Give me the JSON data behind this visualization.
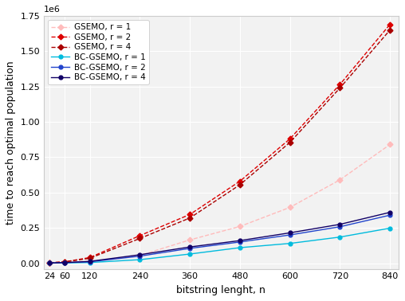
{
  "x": [
    24,
    60,
    120,
    240,
    360,
    480,
    600,
    720,
    840
  ],
  "gsemo_r1": [
    2000,
    5000,
    15000,
    55000,
    165000,
    260000,
    395000,
    590000,
    840000
  ],
  "gsemo_r2": [
    3500,
    10000,
    40000,
    195000,
    345000,
    580000,
    880000,
    1265000,
    1690000
  ],
  "gsemo_r4": [
    3000,
    9000,
    35000,
    175000,
    320000,
    555000,
    855000,
    1240000,
    1650000
  ],
  "bc_gsemo_r1": [
    500,
    2000,
    5000,
    25000,
    65000,
    110000,
    140000,
    185000,
    248000
  ],
  "bc_gsemo_r2": [
    1000,
    3500,
    10000,
    50000,
    105000,
    150000,
    200000,
    258000,
    340000
  ],
  "bc_gsemo_r4": [
    1500,
    4500,
    13000,
    60000,
    115000,
    160000,
    215000,
    275000,
    360000
  ],
  "colors": {
    "gsemo_r1": "#ffbbbb",
    "gsemo_r2": "#dd0000",
    "gsemo_r4": "#aa0000",
    "bc_gsemo_r1": "#00bbdd",
    "bc_gsemo_r2": "#2244cc",
    "bc_gsemo_r4": "#110066"
  },
  "title": "",
  "xlabel": "bitstring lenght, n",
  "ylabel": "time to reach optimal population",
  "ylim": [
    -40000.0,
    1750000.0
  ],
  "xlim": [
    10,
    860
  ],
  "xticks": [
    24,
    60,
    120,
    240,
    360,
    480,
    600,
    720,
    840
  ],
  "yticks": [
    0,
    250000,
    500000,
    750000,
    1000000,
    1250000,
    1500000,
    1750000
  ],
  "ytick_labels": [
    "0.00",
    "0.25",
    "0.50",
    "0.75",
    "1.00",
    "1.25",
    "1.50",
    "1.75"
  ],
  "legend_labels": [
    "GSEMO, r = 1",
    "GSEMO, r = 2",
    "GSEMO, r = 4",
    "BC-GSEMO, r = 1",
    "BC-GSEMO, r = 2",
    "BC-GSEMO, r = 4"
  ],
  "bg_color": "#f2f2f2",
  "grid_color": "#ffffff",
  "panel_border_color": "#cccccc"
}
